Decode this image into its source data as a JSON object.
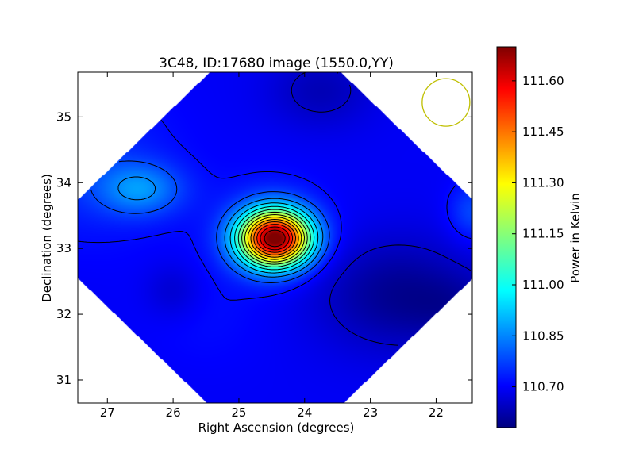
{
  "chart_data": {
    "type": "heatmap",
    "title": "3C48, ID:17680 image (1550.0,YY)",
    "xlabel": "Right Ascension (degrees)",
    "ylabel": "Declination (degrees)",
    "xlim": [
      27.45,
      21.45
    ],
    "ylim": [
      30.65,
      35.68
    ],
    "x_ticks": [
      27,
      26,
      25,
      24,
      23,
      22
    ],
    "x_tick_labels": [
      "27",
      "26",
      "25",
      "24",
      "23",
      "22"
    ],
    "y_ticks": [
      31,
      32,
      33,
      34,
      35
    ],
    "y_tick_labels": [
      "31",
      "32",
      "33",
      "34",
      "35"
    ],
    "colormap": "jet",
    "contours": "black",
    "colorbar": {
      "label": "Power in Kelvin",
      "range": [
        110.58,
        111.7
      ],
      "ticks": [
        110.7,
        110.85,
        111.0,
        111.15,
        111.3,
        111.45,
        111.6
      ],
      "tick_labels": [
        "110.70",
        "110.85",
        "111.00",
        "111.15",
        "111.30",
        "111.45",
        "111.60"
      ]
    },
    "field_footprint": "diamond centred near RA 24.45, Dec 33.15",
    "peak": {
      "ra": 24.45,
      "dec": 33.15,
      "value": 111.68
    },
    "features": [
      {
        "kind": "bright source",
        "ra": 24.45,
        "dec": 33.15,
        "level": 111.68
      },
      {
        "kind": "local maximum",
        "ra": 26.5,
        "dec": 33.9,
        "level": 110.86
      },
      {
        "kind": "local maximum",
        "ra": 21.55,
        "dec": 33.55,
        "level": 110.8
      },
      {
        "kind": "local minimum",
        "ra": 26.0,
        "dec": 32.35,
        "level": 110.66
      },
      {
        "kind": "low region",
        "ra": 22.6,
        "dec": 32.3,
        "level": 110.6
      },
      {
        "kind": "low region",
        "ra": 23.75,
        "dec": 35.35,
        "level": 110.64
      }
    ],
    "beam_marker": {
      "ra": 21.85,
      "dec": 35.22,
      "color": "#bfbf00"
    },
    "colors": {
      "contour": "#000000",
      "beam": "#bfbf00",
      "frame": "#000000"
    }
  }
}
